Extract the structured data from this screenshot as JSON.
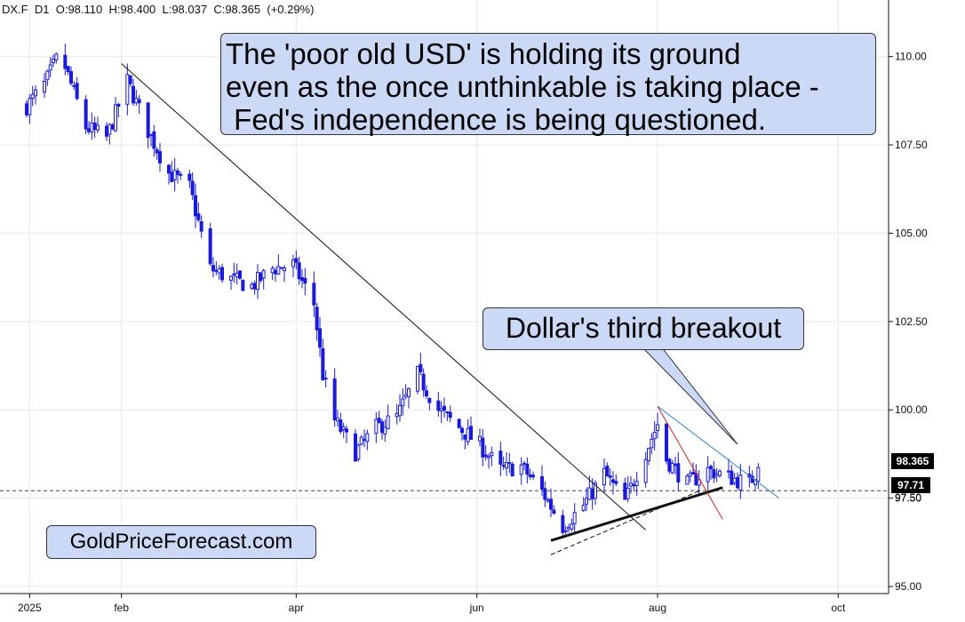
{
  "header": {
    "symbol": "DX.F",
    "timeframe": "D1",
    "open": "O:98.110",
    "high": "H:98.400",
    "low": "L:98.037",
    "close": "C:98.365",
    "change": "(+0.29%)"
  },
  "annotations": {
    "main_lines": [
      "The 'poor old USD' is holding its ground",
      "even as the once unthinkable is taking place -",
      " Fed's independence is being questioned."
    ],
    "breakout": "Dollar's third breakout",
    "site": "GoldPriceForecast.com"
  },
  "price_tags": {
    "last": "98.365",
    "support": "97.71",
    "partial": "97.50"
  },
  "colors": {
    "candle": "#1a1adb",
    "callout_bg": "#cbd9f7",
    "red_line": "#d42020",
    "blue_line": "#2f7fdc",
    "trend": "#111111"
  },
  "chart_data": {
    "type": "candlestick",
    "symbol": "DX.F",
    "timeframe": "D1",
    "ylim": [
      94.8,
      111.6
    ],
    "y_ticks": [
      "95.00",
      "97.50",
      "100.00",
      "102.50",
      "105.00",
      "107.50",
      "110.00"
    ],
    "x_ticks": [
      {
        "label": "2025",
        "date": "2025-01-01"
      },
      {
        "label": "feb",
        "date": "2025-02-01"
      },
      {
        "label": "apr",
        "date": "2025-04-01"
      },
      {
        "label": "jun",
        "date": "2025-06-01"
      },
      {
        "label": "aug",
        "date": "2025-08-01"
      },
      {
        "label": "oct",
        "date": "2025-10-01"
      }
    ],
    "x_range": [
      "2024-12-22",
      "2025-10-18"
    ],
    "support_level": 97.71,
    "last_price": 98.365,
    "anchors": [
      [
        "2024-12-31",
        108.6
      ],
      [
        "2025-01-06",
        109.2
      ],
      [
        "2025-01-10",
        109.9
      ],
      [
        "2025-01-13",
        109.7
      ],
      [
        "2025-01-20",
        108.0
      ],
      [
        "2025-01-27",
        107.7
      ],
      [
        "2025-02-03",
        109.3
      ],
      [
        "2025-02-10",
        107.9
      ],
      [
        "2025-02-17",
        106.7
      ],
      [
        "2025-02-24",
        106.3
      ],
      [
        "2025-03-03",
        104.0
      ],
      [
        "2025-03-10",
        103.7
      ],
      [
        "2025-03-17",
        103.5
      ],
      [
        "2025-03-24",
        104.0
      ],
      [
        "2025-03-31",
        104.1
      ],
      [
        "2025-04-07",
        103.0
      ],
      [
        "2025-04-10",
        101.0
      ],
      [
        "2025-04-14",
        99.7
      ],
      [
        "2025-04-21",
        98.8
      ],
      [
        "2025-04-28",
        99.5
      ],
      [
        "2025-05-05",
        99.8
      ],
      [
        "2025-05-12",
        101.0
      ],
      [
        "2025-05-19",
        100.0
      ],
      [
        "2025-05-26",
        99.5
      ],
      [
        "2025-06-02",
        99.0
      ],
      [
        "2025-06-09",
        98.3
      ],
      [
        "2025-06-16",
        98.4
      ],
      [
        "2025-06-23",
        97.7
      ],
      [
        "2025-06-30",
        96.7
      ],
      [
        "2025-07-07",
        97.3
      ],
      [
        "2025-07-14",
        98.2
      ],
      [
        "2025-07-21",
        97.4
      ],
      [
        "2025-07-28",
        98.8
      ],
      [
        "2025-08-01",
        99.6
      ],
      [
        "2025-08-04",
        98.6
      ],
      [
        "2025-08-11",
        97.9
      ],
      [
        "2025-08-18",
        98.3
      ],
      [
        "2025-08-25",
        98.1
      ],
      [
        "2025-09-01",
        97.9
      ],
      [
        "2025-09-04",
        98.365
      ]
    ],
    "trend_lines": [
      {
        "style": "solid",
        "color": "black",
        "from": [
          "2025-02-01",
          109.8
        ],
        "to": [
          "2025-07-28",
          96.6
        ]
      },
      {
        "style": "solid",
        "color": "black",
        "bold": true,
        "from": [
          "2025-06-26",
          96.3
        ],
        "to": [
          "2025-08-23",
          97.8
        ]
      },
      {
        "style": "dashed",
        "color": "black",
        "from": [
          "2025-06-26",
          95.9
        ],
        "to": [
          "2025-08-15",
          97.7
        ]
      },
      {
        "style": "solid",
        "color": "red",
        "from": [
          "2025-08-01",
          100.1
        ],
        "to": [
          "2025-08-23",
          96.9
        ]
      },
      {
        "style": "solid",
        "color": "blue",
        "from": [
          "2025-08-01",
          100.1
        ],
        "to": [
          "2025-09-11",
          97.5
        ]
      }
    ]
  }
}
